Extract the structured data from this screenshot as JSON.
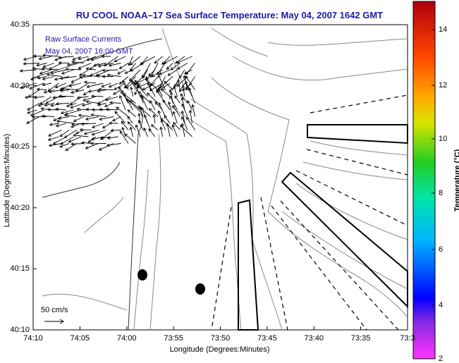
{
  "title": "RU COOL  NOAA–17  Sea Surface Temperature:  May 04, 2007 1642 GMT",
  "overlay": {
    "line1": "Raw Surface Currents",
    "line2": "May 04, 2007 16:00 GMT"
  },
  "axes": {
    "xlabel": "Longitude (Degrees:Minutes)",
    "ylabel": "Latitude (Degrees:Minutes)",
    "xticks": [
      "74:10",
      "74:05",
      "74:00",
      "73:55",
      "73:50",
      "73:45",
      "73:40",
      "73:35",
      "73:3"
    ],
    "yticks": [
      "40:35",
      "40:30",
      "40:25",
      "40:20",
      "40:15",
      "40:10"
    ]
  },
  "scale": {
    "label": "50 cm/s"
  },
  "colorbar": {
    "label": "Temperature (°C)",
    "ticks": [
      "14",
      "12",
      "10",
      "8",
      "6",
      "4",
      "2"
    ]
  },
  "colors": {
    "title": "#1a1aa8",
    "overlay": "#1a1aa8",
    "contour": "#888888",
    "vectors": "#000000"
  }
}
